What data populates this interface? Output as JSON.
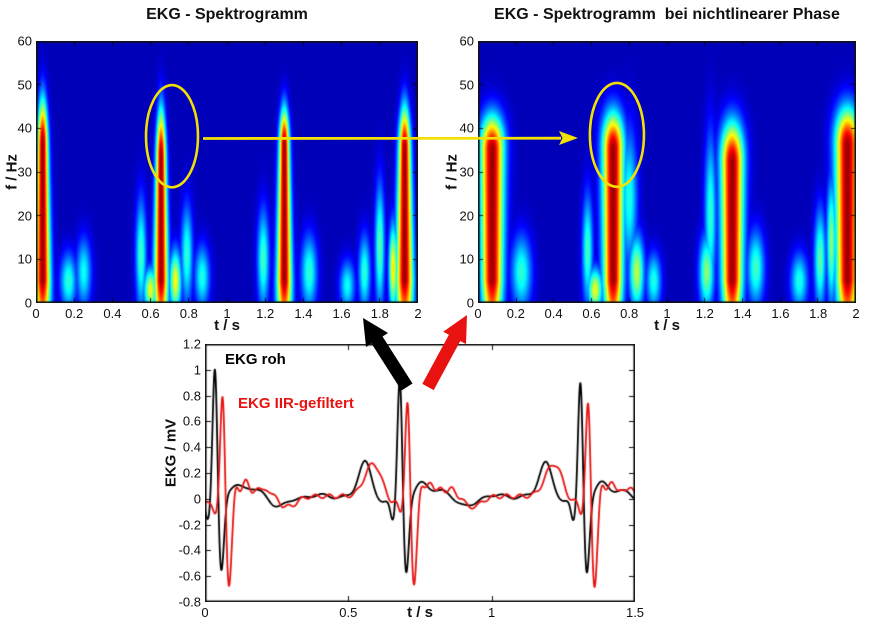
{
  "figure": {
    "background": "#ffffff",
    "description_colors": {
      "annotation_yellow": "#f2df04",
      "raw_arrow_black": "#000000",
      "filtered_arrow_red": "#e81310",
      "spectrogram_background_blue": "#0008ac"
    }
  },
  "chart_data": [
    {
      "type": "heatmap",
      "title": "EKG - Spektrogramm",
      "xlabel": "t / s",
      "ylabel": "f / Hz",
      "xlim": [
        0,
        2
      ],
      "ylim": [
        0,
        60
      ],
      "grid": false,
      "colormap": "jet",
      "xticks": {
        "values": [
          0,
          0.2,
          0.4,
          0.6,
          0.8,
          1,
          1.2,
          1.4,
          1.6,
          1.8,
          2
        ],
        "labels": [
          "0",
          "0.2",
          "0.4",
          "0.6",
          "0.8",
          "1",
          "1.2",
          "1.4",
          "1.6",
          "1.8",
          "2"
        ]
      },
      "yticks": {
        "values": [
          0,
          10,
          20,
          30,
          40,
          50,
          60
        ],
        "labels": [
          "0",
          "10",
          "20",
          "30",
          "40",
          "50",
          "60"
        ]
      },
      "bursts": [
        {
          "t": 0.035,
          "core_f": 36,
          "halo_f": 51,
          "width": 0.03,
          "amp": 1.0
        },
        {
          "t": 0.655,
          "core_f": 33,
          "halo_f": 49,
          "width": 0.027,
          "amp": 1.0
        },
        {
          "t": 1.3,
          "core_f": 36,
          "halo_f": 48,
          "width": 0.029,
          "amp": 1.0
        },
        {
          "t": 1.93,
          "core_f": 35,
          "halo_f": 49,
          "width": 0.033,
          "amp": 1.0
        }
      ],
      "blobs": [
        {
          "t": 0.17,
          "f": 5,
          "wt": 0.03,
          "wf": 4.5,
          "amp": 0.4
        },
        {
          "t": 0.25,
          "f": 7,
          "wt": 0.028,
          "wf": 5.5,
          "amp": 0.36
        },
        {
          "t": 0.55,
          "f": 11,
          "wt": 0.02,
          "wf": 9.0,
          "amp": 0.42
        },
        {
          "t": 0.6,
          "f": 3,
          "wt": 0.025,
          "wf": 3.5,
          "amp": 0.6
        },
        {
          "t": 0.73,
          "f": 5,
          "wt": 0.022,
          "wf": 5.0,
          "amp": 0.62
        },
        {
          "t": 0.79,
          "f": 11,
          "wt": 0.022,
          "wf": 8.0,
          "amp": 0.4
        },
        {
          "t": 0.87,
          "f": 6,
          "wt": 0.028,
          "wf": 5.0,
          "amp": 0.38
        },
        {
          "t": 1.19,
          "f": 10,
          "wt": 0.022,
          "wf": 8.0,
          "amp": 0.42
        },
        {
          "t": 1.43,
          "f": 7,
          "wt": 0.03,
          "wf": 6.0,
          "amp": 0.4
        },
        {
          "t": 1.63,
          "f": 4,
          "wt": 0.028,
          "wf": 4.0,
          "amp": 0.36
        },
        {
          "t": 1.72,
          "f": 7,
          "wt": 0.022,
          "wf": 6.0,
          "amp": 0.4
        },
        {
          "t": 1.8,
          "f": 13,
          "wt": 0.018,
          "wf": 10.0,
          "amp": 0.45
        },
        {
          "t": 1.87,
          "f": 8,
          "wt": 0.016,
          "wf": 7.0,
          "amp": 0.65
        }
      ],
      "taper": 0.45,
      "highlight_ellipse": {
        "t": 0.712,
        "f": 38.2,
        "rt": 0.136,
        "rf": 11.7
      }
    },
    {
      "type": "heatmap",
      "title": "EKG - Spektrogramm  bei nichtlinearer Phase",
      "xlabel": "t / s",
      "ylabel": "f / Hz",
      "xlim": [
        0,
        2
      ],
      "ylim": [
        0,
        60
      ],
      "grid": false,
      "colormap": "jet",
      "xticks": {
        "values": [
          0,
          0.2,
          0.4,
          0.6,
          0.8,
          1,
          1.2,
          1.4,
          1.6,
          1.8,
          2
        ],
        "labels": [
          "0",
          "0.2",
          "0.4",
          "0.6",
          "0.8",
          "1",
          "1.2",
          "1.4",
          "1.6",
          "1.8",
          "2"
        ]
      },
      "yticks": {
        "values": [
          0,
          10,
          20,
          30,
          40,
          50,
          60
        ],
        "labels": [
          "0",
          "10",
          "20",
          "30",
          "40",
          "50",
          "60"
        ]
      },
      "bursts": [
        {
          "t": 0.075,
          "core_f": 35,
          "halo_f": 46,
          "width": 0.038,
          "amp": 1.0
        },
        {
          "t": 0.715,
          "core_f": 35,
          "halo_f": 47,
          "width": 0.035,
          "amp": 1.0
        },
        {
          "t": 1.345,
          "core_f": 32,
          "halo_f": 45,
          "width": 0.037,
          "amp": 1.0
        },
        {
          "t": 1.955,
          "core_f": 36,
          "halo_f": 48,
          "width": 0.04,
          "amp": 1.0
        }
      ],
      "blobs": [
        {
          "t": 0.23,
          "f": 7,
          "wt": 0.038,
          "wf": 6.0,
          "amp": 0.4
        },
        {
          "t": 0.58,
          "f": 12,
          "wt": 0.02,
          "wf": 9.0,
          "amp": 0.42
        },
        {
          "t": 0.62,
          "f": 3,
          "wt": 0.028,
          "wf": 3.5,
          "amp": 0.6
        },
        {
          "t": 0.8,
          "f": 24,
          "wt": 0.03,
          "wf": 11.0,
          "amp": 0.38
        },
        {
          "t": 0.84,
          "f": 7,
          "wt": 0.028,
          "wf": 6.0,
          "amp": 0.55
        },
        {
          "t": 0.93,
          "f": 5,
          "wt": 0.028,
          "wf": 4.5,
          "amp": 0.38
        },
        {
          "t": 1.23,
          "f": 20,
          "wt": 0.022,
          "wf": 13.0,
          "amp": 0.4
        },
        {
          "t": 1.21,
          "f": 7,
          "wt": 0.028,
          "wf": 6.0,
          "amp": 0.5
        },
        {
          "t": 1.47,
          "f": 8,
          "wt": 0.032,
          "wf": 6.0,
          "amp": 0.42
        },
        {
          "t": 1.7,
          "f": 5,
          "wt": 0.032,
          "wf": 4.5,
          "amp": 0.38
        },
        {
          "t": 1.81,
          "f": 10,
          "wt": 0.022,
          "wf": 8.0,
          "amp": 0.45
        },
        {
          "t": 1.87,
          "f": 14,
          "wt": 0.018,
          "wf": 10.0,
          "amp": 0.5
        }
      ],
      "taper": -0.2,
      "highlight_ellipse": {
        "t": 0.735,
        "f": 38.5,
        "rt": 0.143,
        "rf": 11.9
      }
    },
    {
      "type": "line",
      "title": "",
      "xlabel": "t / s",
      "ylabel": "EKG / mV",
      "xlim": [
        0,
        1.5
      ],
      "ylim": [
        -0.8,
        1.2
      ],
      "grid": false,
      "xticks": {
        "values": [
          0,
          0.5,
          1,
          1.5
        ],
        "labels": [
          "0",
          "0.5",
          "1",
          "1.5"
        ]
      },
      "yticks": {
        "values": [
          1.2,
          1,
          0.8,
          0.6,
          0.4,
          0.2,
          0,
          -0.2,
          -0.4,
          -0.6,
          -0.8
        ],
        "labels": [
          "1.2",
          "1",
          "0.8",
          "0.6",
          "0.4",
          "0.2",
          "0",
          "-0.2",
          "-0.4",
          "-0.6",
          "-0.8"
        ]
      },
      "legend": [
        {
          "label": "EKG roh",
          "color": "#000000"
        },
        {
          "label": "EKG IIR-gefiltert",
          "color": "#e81310"
        }
      ],
      "beat_times": [
        0.035,
        0.68,
        1.31
      ],
      "baseline": 0.02,
      "series": [
        {
          "name": "EKG roh",
          "color": "#000000",
          "delay": 0,
          "r_amps": [
            1.05,
            0.97,
            0.95
          ],
          "q_amp": -0.18,
          "s_amp": -0.62,
          "t_amp": 0.27,
          "t_width": 0.022,
          "ring_amp": 0,
          "ring_freq": 0
        },
        {
          "name": "EKG IIR-gefiltert",
          "color": "#e81310",
          "delay": 0.027,
          "r_amps": [
            0.84,
            0.8,
            0.78
          ],
          "q_amp": -0.12,
          "s_amp": -0.72,
          "t_amp": 0.25,
          "t_width": 0.03,
          "ring_amp": 0.05,
          "ring_freq": 27
        }
      ]
    }
  ],
  "annotations": {
    "transfer_arrow": {
      "meaning": "same spectral peak in both spectrograms",
      "color": "#f2df04"
    },
    "raw_arrow": {
      "meaning": "raw EKG feeds left spectrogram",
      "color": "#000000"
    },
    "filtered_arrow": {
      "meaning": "IIR-filtered EKG feeds right spectrogram",
      "color": "#e81310"
    }
  }
}
